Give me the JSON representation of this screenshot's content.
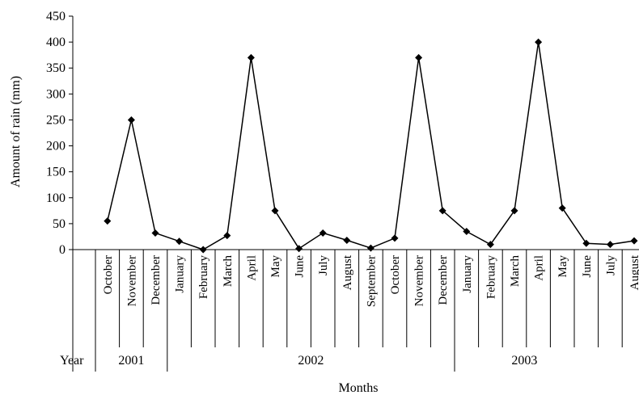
{
  "chart_data": {
    "type": "line",
    "title": "",
    "xlabel": "Months",
    "ylabel": "Amount of rain (mm)",
    "ylim": [
      0,
      450
    ],
    "yticks": [
      0,
      50,
      100,
      150,
      200,
      250,
      300,
      350,
      400,
      450
    ],
    "grid": false,
    "legend": "none",
    "year_label": "Year",
    "categories": [
      "October",
      "November",
      "December",
      "January",
      "February",
      "March",
      "April",
      "May",
      "June",
      "July",
      "August",
      "September",
      "October",
      "November",
      "December",
      "January",
      "February",
      "March",
      "April",
      "May",
      "June",
      "July",
      "August"
    ],
    "years": [
      {
        "label": "2001",
        "span": 3
      },
      {
        "label": "2002",
        "span": 12
      },
      {
        "label": "2003",
        "span": 8
      }
    ],
    "series": [
      {
        "values": [
          55,
          250,
          32,
          16,
          0,
          27,
          370,
          75,
          2,
          32,
          18,
          3,
          22,
          370,
          75,
          35,
          10,
          75,
          400,
          80,
          12,
          10,
          17
        ]
      }
    ],
    "colors": {
      "line": "#000000",
      "marker": "#000000"
    }
  }
}
